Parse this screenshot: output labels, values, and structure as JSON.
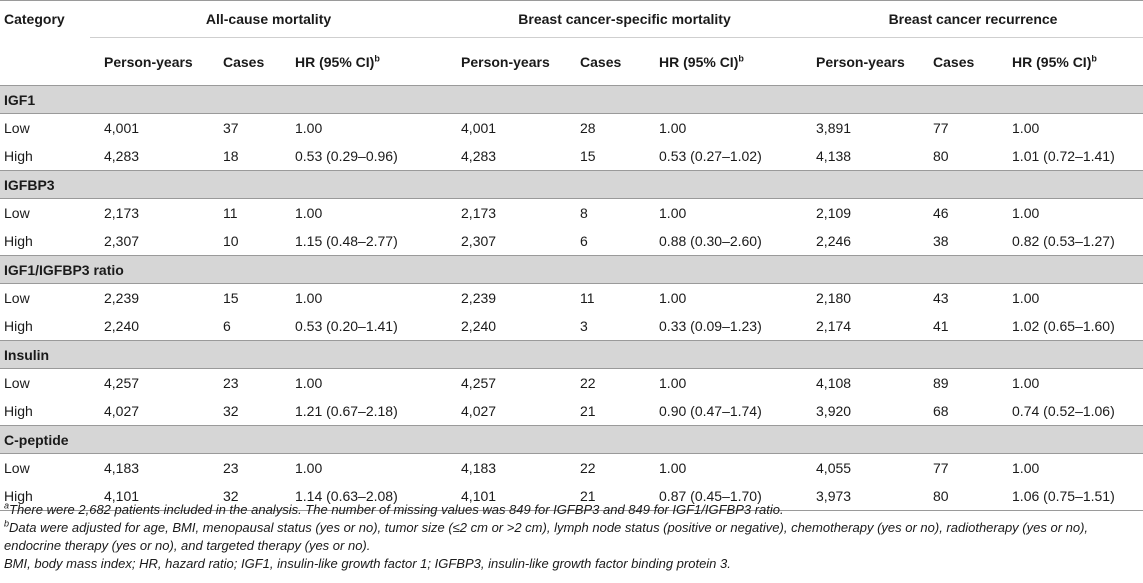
{
  "header": {
    "category": "Category",
    "groups": [
      "All-cause mortality",
      "Breast cancer-specific mortality",
      "Breast cancer recurrence"
    ],
    "sub_person_years": "Person-years",
    "sub_cases": "Cases",
    "sub_hr": "HR (95% CI)",
    "sub_hr_sup": "b"
  },
  "sections": [
    {
      "title": "IGF1",
      "rows": [
        {
          "level": "Low",
          "acm_py": "4,001",
          "acm_cases": "37",
          "acm_hr": "1.00",
          "bcsm_py": "4,001",
          "bcsm_cases": "28",
          "bcsm_hr": "1.00",
          "bcr_py": "3,891",
          "bcr_cases": "77",
          "bcr_hr": "1.00"
        },
        {
          "level": "High",
          "acm_py": "4,283",
          "acm_cases": "18",
          "acm_hr": "0.53 (0.29–0.96)",
          "bcsm_py": "4,283",
          "bcsm_cases": "15",
          "bcsm_hr": "0.53 (0.27–1.02)",
          "bcr_py": "4,138",
          "bcr_cases": "80",
          "bcr_hr": "1.01 (0.72–1.41)"
        }
      ]
    },
    {
      "title": "IGFBP3",
      "rows": [
        {
          "level": "Low",
          "acm_py": "2,173",
          "acm_cases": "11",
          "acm_hr": "1.00",
          "bcsm_py": "2,173",
          "bcsm_cases": "8",
          "bcsm_hr": "1.00",
          "bcr_py": "2,109",
          "bcr_cases": "46",
          "bcr_hr": "1.00"
        },
        {
          "level": "High",
          "acm_py": "2,307",
          "acm_cases": "10",
          "acm_hr": "1.15 (0.48–2.77)",
          "bcsm_py": "2,307",
          "bcsm_cases": "6",
          "bcsm_hr": "0.88 (0.30–2.60)",
          "bcr_py": "2,246",
          "bcr_cases": "38",
          "bcr_hr": "0.82 (0.53–1.27)"
        }
      ]
    },
    {
      "title": "IGF1/IGFBP3 ratio",
      "rows": [
        {
          "level": "Low",
          "acm_py": "2,239",
          "acm_cases": "15",
          "acm_hr": "1.00",
          "bcsm_py": "2,239",
          "bcsm_cases": "11",
          "bcsm_hr": "1.00",
          "bcr_py": "2,180",
          "bcr_cases": "43",
          "bcr_hr": "1.00"
        },
        {
          "level": "High",
          "acm_py": "2,240",
          "acm_cases": "6",
          "acm_hr": "0.53 (0.20–1.41)",
          "bcsm_py": "2,240",
          "bcsm_cases": "3",
          "bcsm_hr": "0.33 (0.09–1.23)",
          "bcr_py": "2,174",
          "bcr_cases": "41",
          "bcr_hr": "1.02 (0.65–1.60)"
        }
      ]
    },
    {
      "title": "Insulin",
      "rows": [
        {
          "level": "Low",
          "acm_py": "4,257",
          "acm_cases": "23",
          "acm_hr": "1.00",
          "bcsm_py": "4,257",
          "bcsm_cases": "22",
          "bcsm_hr": "1.00",
          "bcr_py": "4,108",
          "bcr_cases": "89",
          "bcr_hr": "1.00"
        },
        {
          "level": "High",
          "acm_py": "4,027",
          "acm_cases": "32",
          "acm_hr": "1.21 (0.67–2.18)",
          "bcsm_py": "4,027",
          "bcsm_cases": "21",
          "bcsm_hr": "0.90 (0.47–1.74)",
          "bcr_py": "3,920",
          "bcr_cases": "68",
          "bcr_hr": "0.74 (0.52–1.06)"
        }
      ]
    },
    {
      "title": "C-peptide",
      "rows": [
        {
          "level": "Low",
          "acm_py": "4,183",
          "acm_cases": "23",
          "acm_hr": "1.00",
          "bcsm_py": "4,183",
          "bcsm_cases": "22",
          "bcsm_hr": "1.00",
          "bcr_py": "4,055",
          "bcr_cases": "77",
          "bcr_hr": "1.00"
        },
        {
          "level": "High",
          "acm_py": "4,101",
          "acm_cases": "32",
          "acm_hr": "1.14 (0.63–2.08)",
          "bcsm_py": "4,101",
          "bcsm_cases": "21",
          "bcsm_hr": "0.87 (0.45–1.70)",
          "bcr_py": "3,973",
          "bcr_cases": "80",
          "bcr_hr": "1.06 (0.75–1.51)"
        }
      ]
    }
  ],
  "footnotes": {
    "a_mark": "a",
    "a_text": "There were 2,682 patients included in the analysis. The number of missing values was 849 for IGFBP3 and 849 for IGF1/IGFBP3 ratio.",
    "b_mark": "b",
    "b_text": "Data were adjusted for age, BMI, menopausal status (yes or no), tumor size (≤2 cm or >2 cm), lymph node status (positive or negative), chemotherapy (yes or no), radiotherapy (yes or no), endocrine therapy (yes or no), and targeted therapy (yes or no).",
    "abbrev": "BMI, body mass index; HR, hazard ratio; IGF1, insulin-like growth factor 1; IGFBP3, insulin-like growth factor binding protein 3."
  }
}
